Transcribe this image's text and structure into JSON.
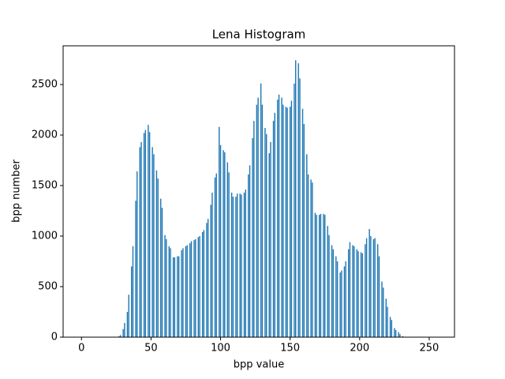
{
  "chart_data": {
    "type": "bar",
    "title": "Lena Histogram",
    "xlabel": "bpp value",
    "ylabel": "bpp number",
    "color": "#1f77b4",
    "x": [
      0,
      1,
      2,
      3,
      4,
      5,
      6,
      7,
      8,
      9,
      10,
      11,
      12,
      13,
      14,
      15,
      16,
      17,
      18,
      19,
      20,
      21,
      22,
      23,
      24,
      25,
      26,
      27,
      28,
      29,
      30,
      31,
      32,
      33,
      34,
      35,
      36,
      37,
      38,
      39,
      40,
      41,
      42,
      43,
      44,
      45,
      46,
      47,
      48,
      49,
      50,
      51,
      52,
      53,
      54,
      55,
      56,
      57,
      58,
      59,
      60,
      61,
      62,
      63,
      64,
      65,
      66,
      67,
      68,
      69,
      70,
      71,
      72,
      73,
      74,
      75,
      76,
      77,
      78,
      79,
      80,
      81,
      82,
      83,
      84,
      85,
      86,
      87,
      88,
      89,
      90,
      91,
      92,
      93,
      94,
      95,
      96,
      97,
      98,
      99,
      100,
      101,
      102,
      103,
      104,
      105,
      106,
      107,
      108,
      109,
      110,
      111,
      112,
      113,
      114,
      115,
      116,
      117,
      118,
      119,
      120,
      121,
      122,
      123,
      124,
      125,
      126,
      127,
      128,
      129,
      130,
      131,
      132,
      133,
      134,
      135,
      136,
      137,
      138,
      139,
      140,
      141,
      142,
      143,
      144,
      145,
      146,
      147,
      148,
      149,
      150,
      151,
      152,
      153,
      154,
      155,
      156,
      157,
      158,
      159,
      160,
      161,
      162,
      163,
      164,
      165,
      166,
      167,
      168,
      169,
      170,
      171,
      172,
      173,
      174,
      175,
      176,
      177,
      178,
      179,
      180,
      181,
      182,
      183,
      184,
      185,
      186,
      187,
      188,
      189,
      190,
      191,
      192,
      193,
      194,
      195,
      196,
      197,
      198,
      199,
      200,
      201,
      202,
      203,
      204,
      205,
      206,
      207,
      208,
      209,
      210,
      211,
      212,
      213,
      214,
      215,
      216,
      217,
      218,
      219,
      220,
      221,
      222,
      223,
      224,
      225,
      226,
      227,
      228,
      229,
      230,
      231,
      232,
      233,
      234,
      235,
      236,
      237,
      238,
      239,
      240,
      241,
      242,
      243,
      244,
      245,
      246,
      247,
      248,
      249,
      250,
      251,
      252,
      253,
      254,
      255
    ],
    "values": [
      0,
      0,
      0,
      0,
      0,
      0,
      0,
      0,
      0,
      0,
      0,
      0,
      0,
      0,
      0,
      0,
      0,
      0,
      0,
      0,
      0,
      0,
      0,
      0,
      0,
      0,
      0,
      10,
      20,
      0,
      80,
      140,
      0,
      250,
      420,
      0,
      700,
      900,
      0,
      1350,
      1640,
      0,
      1880,
      1930,
      0,
      2020,
      2050,
      0,
      2100,
      2030,
      0,
      1880,
      1810,
      0,
      1650,
      1570,
      0,
      1370,
      1280,
      0,
      1010,
      970,
      0,
      900,
      880,
      0,
      790,
      790,
      0,
      800,
      800,
      0,
      860,
      880,
      0,
      900,
      910,
      0,
      930,
      950,
      0,
      960,
      970,
      0,
      990,
      1000,
      0,
      1040,
      1060,
      0,
      1130,
      1170,
      0,
      1310,
      1430,
      0,
      1580,
      1620,
      0,
      2080,
      1900,
      0,
      1850,
      1830,
      0,
      1730,
      1630,
      0,
      1430,
      1390,
      0,
      1390,
      1420,
      0,
      1420,
      1410,
      0,
      1430,
      1460,
      0,
      1610,
      1700,
      0,
      1970,
      2140,
      0,
      2300,
      2370,
      0,
      2510,
      2300,
      0,
      2070,
      2010,
      0,
      1820,
      1930,
      0,
      2140,
      2220,
      0,
      2350,
      2400,
      0,
      2370,
      2300,
      0,
      2280,
      2270,
      0,
      2280,
      2340,
      0,
      2510,
      2740,
      0,
      2710,
      2560,
      0,
      2260,
      2110,
      0,
      1810,
      1610,
      0,
      1560,
      1530,
      0,
      1230,
      1210,
      0,
      1210,
      1220,
      0,
      1220,
      1210,
      0,
      1100,
      1010,
      0,
      910,
      870,
      0,
      800,
      750,
      0,
      640,
      660,
      0,
      700,
      750,
      0,
      870,
      940,
      0,
      910,
      900,
      0,
      870,
      850,
      0,
      840,
      830,
      0,
      920,
      980,
      0,
      1070,
      1000,
      0,
      970,
      980,
      0,
      920,
      800,
      0,
      550,
      490,
      0,
      380,
      300,
      0,
      200,
      170,
      0,
      90,
      70,
      0,
      50,
      30,
      0,
      10,
      0,
      0,
      0,
      0,
      0,
      0,
      0,
      0,
      0,
      0,
      0,
      0,
      0,
      0,
      0,
      0,
      0,
      0,
      0,
      0,
      0,
      0,
      0,
      0
    ],
    "xlim": [
      -13.19,
      268.19
    ],
    "xticks": [
      0,
      50,
      100,
      150,
      200,
      250
    ],
    "ylim": [
      0,
      2883
    ],
    "yticks": [
      0,
      500,
      1000,
      1500,
      2000,
      2500
    ]
  }
}
